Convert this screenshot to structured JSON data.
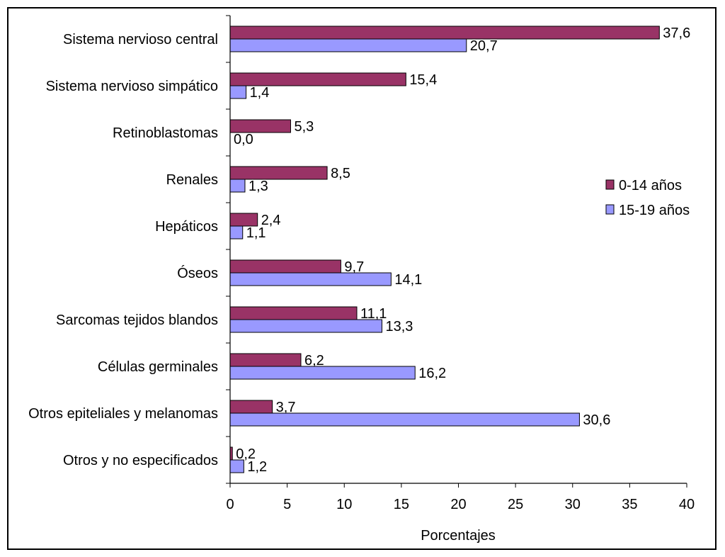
{
  "chart_data": {
    "type": "bar",
    "orientation": "horizontal",
    "categories": [
      "Sistema nervioso central",
      "Sistema nervioso simpático",
      "Retinoblastomas",
      "Renales",
      "Hepáticos",
      "Óseos",
      "Sarcomas tejidos blandos",
      "Células germinales",
      "Otros epiteliales y melanomas",
      "Otros y no especificados"
    ],
    "series": [
      {
        "name": "0-14 años",
        "color": "#993366",
        "values": [
          37.6,
          15.4,
          5.3,
          8.5,
          2.4,
          9.7,
          11.1,
          6.2,
          3.7,
          0.2
        ],
        "labels": [
          "37,6",
          "15,4",
          "5,3",
          "8,5",
          "2,4",
          "9,7",
          "11,1",
          "6,2",
          "3,7",
          "0,2"
        ]
      },
      {
        "name": "15-19 años",
        "color": "#9999ff",
        "values": [
          20.7,
          1.4,
          0.0,
          1.3,
          1.1,
          14.1,
          13.3,
          16.2,
          30.6,
          1.2
        ],
        "labels": [
          "20,7",
          "1,4",
          "0,0",
          "1,3",
          "1,1",
          "14,1",
          "13,3",
          "16,2",
          "30,6",
          "1,2"
        ]
      }
    ],
    "xlabel": "Porcentajes",
    "xlim": [
      0,
      40
    ],
    "xticks": [
      0,
      5,
      10,
      15,
      20,
      25,
      30,
      35,
      40
    ],
    "grid": false,
    "legend": "right"
  }
}
